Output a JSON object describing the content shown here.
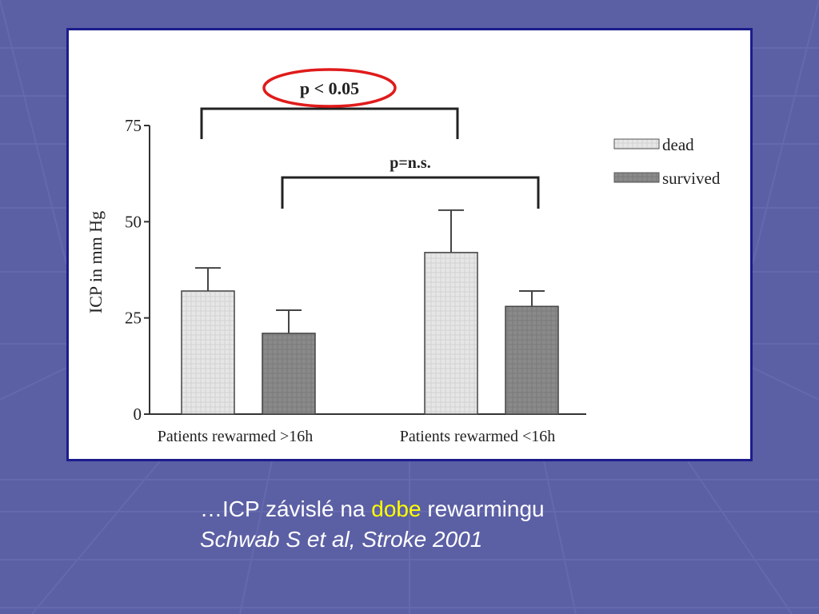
{
  "colors": {
    "background": "#5b5fa4",
    "panel_border": "#1c1c8c",
    "dead": "#e6e6e6",
    "survived": "#8a8a8a",
    "highlight_ring": "#e01b1b",
    "caption_text": "#ffffff",
    "caption_highlight": "#ffff00"
  },
  "chart_data": {
    "type": "bar",
    "ylabel": "ICP in mm Hg",
    "ylim": [
      0,
      75
    ],
    "yticks": [
      0,
      25,
      50,
      75
    ],
    "ytick_labels": [
      "0",
      "25",
      "50",
      "75"
    ],
    "categories": [
      "Patients rewarmed >16h",
      "Patients rewarmed <16h"
    ],
    "series": [
      {
        "name": "dead",
        "values": [
          32,
          42
        ],
        "error_upper": [
          38,
          53
        ],
        "color": "#e6e6e6"
      },
      {
        "name": "survived",
        "values": [
          21,
          28
        ],
        "error_upper": [
          27,
          32
        ],
        "color": "#8a8a8a"
      }
    ],
    "legend": {
      "placement": "top-right",
      "entries": [
        "dead",
        "survived"
      ]
    },
    "annotations": [
      {
        "text": "p < 0.05",
        "from_category": 0,
        "to_category": 1,
        "series": "dead",
        "highlighted": true
      },
      {
        "text": "p=n.s.",
        "from_category": 0,
        "to_category": 1,
        "series": "survived",
        "highlighted": false
      }
    ]
  },
  "caption": {
    "prefix": "…ICP závislé na ",
    "highlight": "dobe",
    "suffix": " rewarmingu",
    "citation": "Schwab S et al, Stroke 2001"
  }
}
